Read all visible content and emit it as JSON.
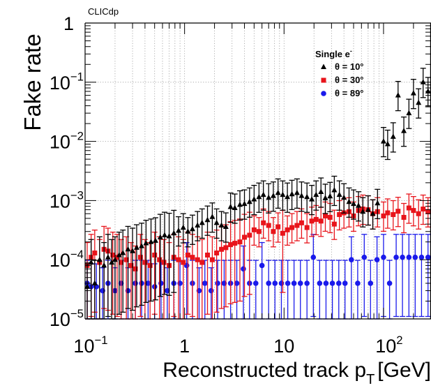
{
  "header": {
    "experiment_label": "CLICdp"
  },
  "chart_data": {
    "type": "scatter",
    "xlabel": "Reconstructed track p_T [GeV]",
    "xlabel_main": "Reconstructed track p",
    "xlabel_sub": "T",
    "xlabel_unit": "[GeV]",
    "ylabel": "Fake rate",
    "xscale": "log",
    "yscale": "log",
    "xlim": [
      0.1,
      300
    ],
    "ylim": [
      1e-05,
      1
    ],
    "grid": "vertical dotted + horizontal dotted at decades",
    "x_tick_labels": [
      {
        "v": 0.1,
        "base": "10",
        "exp": "−1"
      },
      {
        "v": 1,
        "base": "1",
        "exp": ""
      },
      {
        "v": 10,
        "base": "10",
        "exp": ""
      },
      {
        "v": 100,
        "base": "10",
        "exp": "2"
      }
    ],
    "y_tick_labels": [
      {
        "v": 1,
        "base": "1",
        "exp": ""
      },
      {
        "v": 0.1,
        "base": "10",
        "exp": "−1"
      },
      {
        "v": 0.01,
        "base": "10",
        "exp": "−2"
      },
      {
        "v": 0.001,
        "base": "10",
        "exp": "−3"
      },
      {
        "v": 0.0001,
        "base": "10",
        "exp": "−4"
      },
      {
        "v": 1e-05,
        "base": "10",
        "exp": "−5"
      }
    ],
    "legend": {
      "title_main": "Single e",
      "title_sup": "-",
      "position": "top-right"
    },
    "series": [
      {
        "name": "θ = 10°",
        "color": "#000000",
        "marker": "triangle",
        "points": [
          [
            0.105,
            3.5e-05
          ],
          [
            0.115,
            9e-05
          ],
          [
            0.125,
            4e-05
          ],
          [
            0.14,
            0.0001
          ],
          [
            0.155,
            8e-05
          ],
          [
            0.17,
            0.00011
          ],
          [
            0.185,
            9e-05
          ],
          [
            0.2,
            0.0001
          ],
          [
            0.22,
            0.00012
          ],
          [
            0.24,
            0.00013
          ],
          [
            0.27,
            0.00015
          ],
          [
            0.3,
            0.00014
          ],
          [
            0.33,
            0.00016
          ],
          [
            0.37,
            0.00017
          ],
          [
            0.41,
            0.00019
          ],
          [
            0.46,
            0.0002
          ],
          [
            0.51,
            0.00021
          ],
          [
            0.57,
            0.00024
          ],
          [
            0.63,
            0.00026
          ],
          [
            0.7,
            0.00025
          ],
          [
            0.78,
            0.00028
          ],
          [
            0.87,
            0.00031
          ],
          [
            0.97,
            0.00035
          ],
          [
            1.08,
            0.0003
          ],
          [
            1.2,
            0.00033
          ],
          [
            1.35,
            0.00038
          ],
          [
            1.5,
            0.00042
          ],
          [
            1.7,
            0.00047
          ],
          [
            1.9,
            0.00053
          ],
          [
            2.1,
            0.00042
          ],
          [
            2.35,
            0.00038
          ],
          [
            2.6,
            0.00036
          ],
          [
            2.9,
            0.00078
          ],
          [
            3.2,
            0.00075
          ],
          [
            3.6,
            0.00085
          ],
          [
            4.0,
            0.00088
          ],
          [
            4.5,
            0.00095
          ],
          [
            5.0,
            0.00105
          ],
          [
            5.6,
            0.00115
          ],
          [
            6.2,
            0.00125
          ],
          [
            7.0,
            0.00112
          ],
          [
            7.8,
            0.0012
          ],
          [
            8.7,
            0.00135
          ],
          [
            9.7,
            0.00125
          ],
          [
            10.8,
            0.00115
          ],
          [
            12,
            0.00128
          ],
          [
            13.5,
            0.00135
          ],
          [
            15,
            0.0012
          ],
          [
            17,
            0.00115
          ],
          [
            19,
            0.00105
          ],
          [
            21,
            0.00125
          ],
          [
            23.5,
            0.0014
          ],
          [
            26,
            0.0011
          ],
          [
            29,
            0.00118
          ],
          [
            32,
            0.0015
          ],
          [
            36,
            0.00125
          ],
          [
            40,
            0.00112
          ],
          [
            45,
            0.00095
          ],
          [
            50,
            0.00088
          ],
          [
            56,
            0.00082
          ],
          [
            62,
            0.00065
          ],
          [
            70,
            0.0007
          ],
          [
            78,
            0.0006
          ],
          [
            87,
            0.0009
          ],
          [
            100,
            0.01
          ],
          [
            110,
            0.009
          ],
          [
            125,
            0.012
          ],
          [
            140,
            0.06
          ],
          [
            160,
            0.015
          ],
          [
            180,
            0.03
          ],
          [
            200,
            0.065
          ],
          [
            225,
            0.045
          ],
          [
            250,
            0.1
          ],
          [
            280,
            0.07
          ]
        ]
      },
      {
        "name": "θ = 30°",
        "color": "#e8141b",
        "marker": "square",
        "points": [
          [
            0.105,
            8e-05
          ],
          [
            0.115,
            0.00011
          ],
          [
            0.125,
            0.00013
          ],
          [
            0.14,
            9e-05
          ],
          [
            0.155,
            0.00015
          ],
          [
            0.17,
            0.00014
          ],
          [
            0.19,
            0.00012
          ],
          [
            0.21,
            0.00011
          ],
          [
            0.23,
            9e-05
          ],
          [
            0.26,
            0.0001
          ],
          [
            0.29,
            8e-05
          ],
          [
            0.32,
            7e-05
          ],
          [
            0.36,
            0.00011
          ],
          [
            0.4,
            9e-05
          ],
          [
            0.45,
            8e-05
          ],
          [
            0.5,
            0.00012
          ],
          [
            0.56,
            0.0001
          ],
          [
            0.62,
            9e-05
          ],
          [
            0.7,
            8e-05
          ],
          [
            0.78,
            0.00011
          ],
          [
            0.87,
            0.0001
          ],
          [
            0.97,
            9e-05
          ],
          [
            1.08,
            0.00012
          ],
          [
            1.2,
            0.00011
          ],
          [
            1.35,
            0.0001
          ],
          [
            1.5,
            9e-05
          ],
          [
            1.7,
            0.00012
          ],
          [
            1.9,
            0.0001
          ],
          [
            2.1,
            0.00013
          ],
          [
            2.35,
            0.00015
          ],
          [
            2.6,
            0.00016
          ],
          [
            2.9,
            0.00018
          ],
          [
            3.2,
            0.00019
          ],
          [
            3.6,
            0.0002
          ],
          [
            4.0,
            0.00024
          ],
          [
            4.5,
            0.00026
          ],
          [
            5.0,
            0.00032
          ],
          [
            5.6,
            0.0003
          ],
          [
            6.2,
            0.00042
          ],
          [
            7.0,
            0.00038
          ],
          [
            7.8,
            0.0003
          ],
          [
            8.7,
            0.00036
          ],
          [
            9.7,
            0.00028
          ],
          [
            10.8,
            0.00032
          ],
          [
            12,
            0.00035
          ],
          [
            13.5,
            0.00038
          ],
          [
            15,
            0.00042
          ],
          [
            17,
            0.00035
          ],
          [
            19,
            0.00045
          ],
          [
            21,
            0.00048
          ],
          [
            23.5,
            0.00045
          ],
          [
            26,
            0.00055
          ],
          [
            29,
            0.00052
          ],
          [
            32,
            0.0004
          ],
          [
            36,
            0.00058
          ],
          [
            40,
            0.00062
          ],
          [
            45,
            0.00065
          ],
          [
            50,
            0.00055
          ],
          [
            56,
            0.00068
          ],
          [
            62,
            0.00072
          ],
          [
            70,
            0.0007
          ],
          [
            78,
            0.0006
          ],
          [
            87,
            0.00065
          ],
          [
            100,
            0.00055
          ],
          [
            110,
            0.00062
          ],
          [
            125,
            0.00058
          ],
          [
            140,
            0.00066
          ],
          [
            160,
            0.00052
          ],
          [
            180,
            0.00075
          ],
          [
            200,
            0.00068
          ],
          [
            225,
            0.0006
          ],
          [
            250,
            0.00072
          ],
          [
            280,
            0.00065
          ]
        ]
      },
      {
        "name": "θ = 89°",
        "color": "#1a1aeb",
        "marker": "circle",
        "points": [
          [
            0.105,
            4e-05
          ],
          [
            0.115,
            3.5e-05
          ],
          [
            0.13,
            3.5e-05
          ],
          [
            0.15,
            3e-05
          ],
          [
            0.17,
            4e-05
          ],
          [
            0.2,
            3e-05
          ],
          [
            0.23,
            4e-05
          ],
          [
            0.27,
            3e-05
          ],
          [
            0.32,
            4e-05
          ],
          [
            0.37,
            4e-05
          ],
          [
            0.43,
            4e-05
          ],
          [
            0.5,
            3.5e-05
          ],
          [
            0.58,
            4e-05
          ],
          [
            0.67,
            3e-05
          ],
          [
            0.78,
            4e-05
          ],
          [
            0.9,
            4e-05
          ],
          [
            1.05,
            8e-05
          ],
          [
            1.2,
            4e-05
          ],
          [
            1.4,
            3e-05
          ],
          [
            1.6,
            4e-05
          ],
          [
            1.85,
            3e-05
          ],
          [
            2.15,
            4e-05
          ],
          [
            2.5,
            4e-05
          ],
          [
            2.9,
            4e-05
          ],
          [
            3.35,
            4e-05
          ],
          [
            3.9,
            7e-05
          ],
          [
            4.5,
            4e-05
          ],
          [
            5.2,
            4e-05
          ],
          [
            6.0,
            8e-05
          ],
          [
            7.0,
            4e-05
          ],
          [
            8.1,
            4e-05
          ],
          [
            9.4,
            4e-05
          ],
          [
            10.9,
            4e-05
          ],
          [
            12.6,
            4e-05
          ],
          [
            14.6,
            4e-05
          ],
          [
            17,
            4e-05
          ],
          [
            19.7,
            0.00011
          ],
          [
            22.8,
            4e-05
          ],
          [
            26.4,
            4e-05
          ],
          [
            30.6,
            4e-05
          ],
          [
            35.5,
            4e-05
          ],
          [
            41,
            4e-05
          ],
          [
            47.5,
            0.0001
          ],
          [
            55,
            4e-05
          ],
          [
            64,
            0.00011
          ],
          [
            74,
            4e-05
          ],
          [
            86,
            0.0001
          ],
          [
            100,
            0.00011
          ],
          [
            115,
            4e-05
          ],
          [
            134,
            0.00011
          ],
          [
            155,
            0.00011
          ],
          [
            180,
            0.00011
          ],
          [
            208,
            0.00011
          ],
          [
            241,
            0.00011
          ],
          [
            280,
            0.00011
          ]
        ]
      }
    ]
  }
}
